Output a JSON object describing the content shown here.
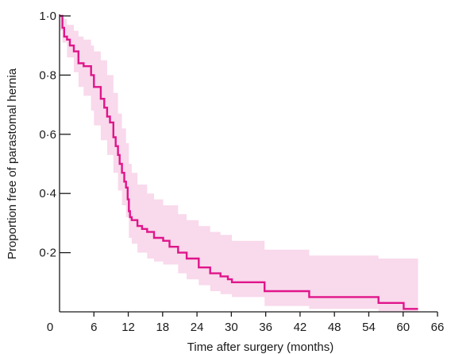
{
  "chart_data": {
    "type": "line",
    "title": "",
    "xlabel": "Time after surgery (months)",
    "ylabel": "Proportion free of parastomal hernia",
    "xlim": [
      0,
      66
    ],
    "ylim": [
      0,
      1.0
    ],
    "x_ticks": [
      0,
      6,
      12,
      18,
      24,
      30,
      36,
      42,
      48,
      54,
      60,
      66
    ],
    "x_tick_labels": [
      "0",
      "6",
      "12",
      "18",
      "24",
      "30",
      "36",
      "42",
      "48",
      "54",
      "60",
      "66"
    ],
    "y_ticks": [
      0.2,
      0.4,
      0.6,
      0.8,
      1.0
    ],
    "y_tick_labels": [
      "0·2",
      "0·4",
      "0·6",
      "0·8",
      "1·0"
    ],
    "grid": false,
    "colors": {
      "line": "#e0158a",
      "band": "#f9d9ec",
      "axis": "#1a1a1a"
    },
    "series": [
      {
        "kind": "kaplan-meier step",
        "x": [
          0,
          0.5,
          0.8,
          1.3,
          1.8,
          2.5,
          3.3,
          4.2,
          5.5,
          6.0,
          7.2,
          7.8,
          8.3,
          8.8,
          9.4,
          9.8,
          10.2,
          10.5,
          10.9,
          11.3,
          11.6,
          11.9,
          12.1,
          12.3,
          12.6,
          13.6,
          14.4,
          15.3,
          16.5,
          18.1,
          19.2,
          20.7,
          22.2,
          24.3,
          26.3,
          28.1,
          29.4,
          30.1,
          35.8,
          43.6,
          55.7,
          60.1,
          62.6
        ],
        "y": [
          1.0,
          0.96,
          0.93,
          0.92,
          0.9,
          0.88,
          0.84,
          0.83,
          0.8,
          0.76,
          0.72,
          0.69,
          0.66,
          0.64,
          0.59,
          0.56,
          0.53,
          0.5,
          0.47,
          0.44,
          0.42,
          0.38,
          0.34,
          0.32,
          0.31,
          0.29,
          0.28,
          0.27,
          0.25,
          0.24,
          0.22,
          0.2,
          0.18,
          0.15,
          0.13,
          0.12,
          0.11,
          0.1,
          0.07,
          0.05,
          0.03,
          0.01,
          0.01
        ]
      }
    ],
    "confidence_band": {
      "x": [
        0,
        0.5,
        1.3,
        2.5,
        3.3,
        4.2,
        5.5,
        6.0,
        7.2,
        8.3,
        9.4,
        10.2,
        10.9,
        11.6,
        12.1,
        12.6,
        13.6,
        15.3,
        16.5,
        18.1,
        20.7,
        22.2,
        24.3,
        26.3,
        28.1,
        30.1,
        35.8,
        43.6,
        55.7,
        62.6
      ],
      "upper": [
        1.0,
        0.99,
        0.97,
        0.95,
        0.93,
        0.92,
        0.9,
        0.88,
        0.85,
        0.8,
        0.74,
        0.67,
        0.62,
        0.57,
        0.5,
        0.47,
        0.43,
        0.4,
        0.38,
        0.36,
        0.33,
        0.31,
        0.29,
        0.27,
        0.26,
        0.24,
        0.21,
        0.19,
        0.18,
        0.18
      ],
      "lower": [
        0.95,
        0.91,
        0.86,
        0.81,
        0.76,
        0.73,
        0.68,
        0.63,
        0.58,
        0.53,
        0.47,
        0.41,
        0.36,
        0.32,
        0.25,
        0.23,
        0.2,
        0.18,
        0.17,
        0.16,
        0.13,
        0.11,
        0.09,
        0.07,
        0.06,
        0.05,
        0.02,
        0.01,
        0.0,
        0.0
      ]
    }
  }
}
